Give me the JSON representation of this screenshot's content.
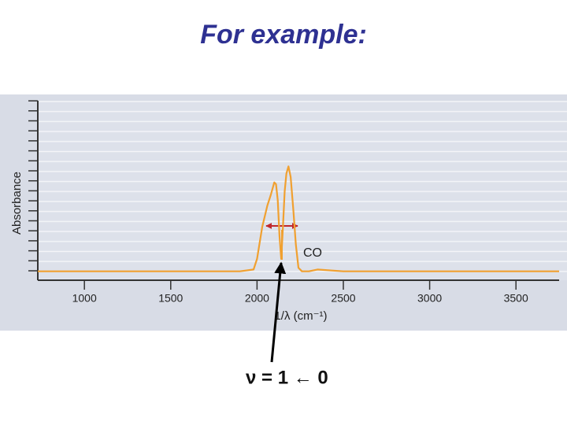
{
  "chart_data": {
    "type": "line",
    "title": "For example:",
    "x_label": "1/λ (cm⁻¹)",
    "y_label": "Absorbance",
    "annotations": [
      "CO",
      "ν = 1 ← 0"
    ],
    "x": [
      730,
      1000,
      1500,
      1900,
      1980,
      2000,
      2030,
      2060,
      2080,
      2100,
      2110,
      2120,
      2130,
      2140,
      2150,
      2160,
      2170,
      2182,
      2195,
      2210,
      2225,
      2240,
      2260,
      2300,
      2350,
      2500,
      3000,
      3500,
      3750
    ],
    "series": [
      {
        "name": "CO",
        "color": "#f0a030",
        "values": [
          0.05,
          0.05,
          0.05,
          0.05,
          0.06,
          0.12,
          0.3,
          0.42,
          0.48,
          0.55,
          0.54,
          0.45,
          0.25,
          0.12,
          0.3,
          0.5,
          0.6,
          0.64,
          0.58,
          0.4,
          0.2,
          0.07,
          0.05,
          0.05,
          0.06,
          0.05,
          0.05,
          0.05,
          0.05
        ]
      }
    ],
    "xlim": [
      730,
      3750
    ],
    "xticks": [
      1000,
      1500,
      2000,
      2500,
      3000,
      3500
    ],
    "ylim": [
      0,
      1
    ]
  }
}
